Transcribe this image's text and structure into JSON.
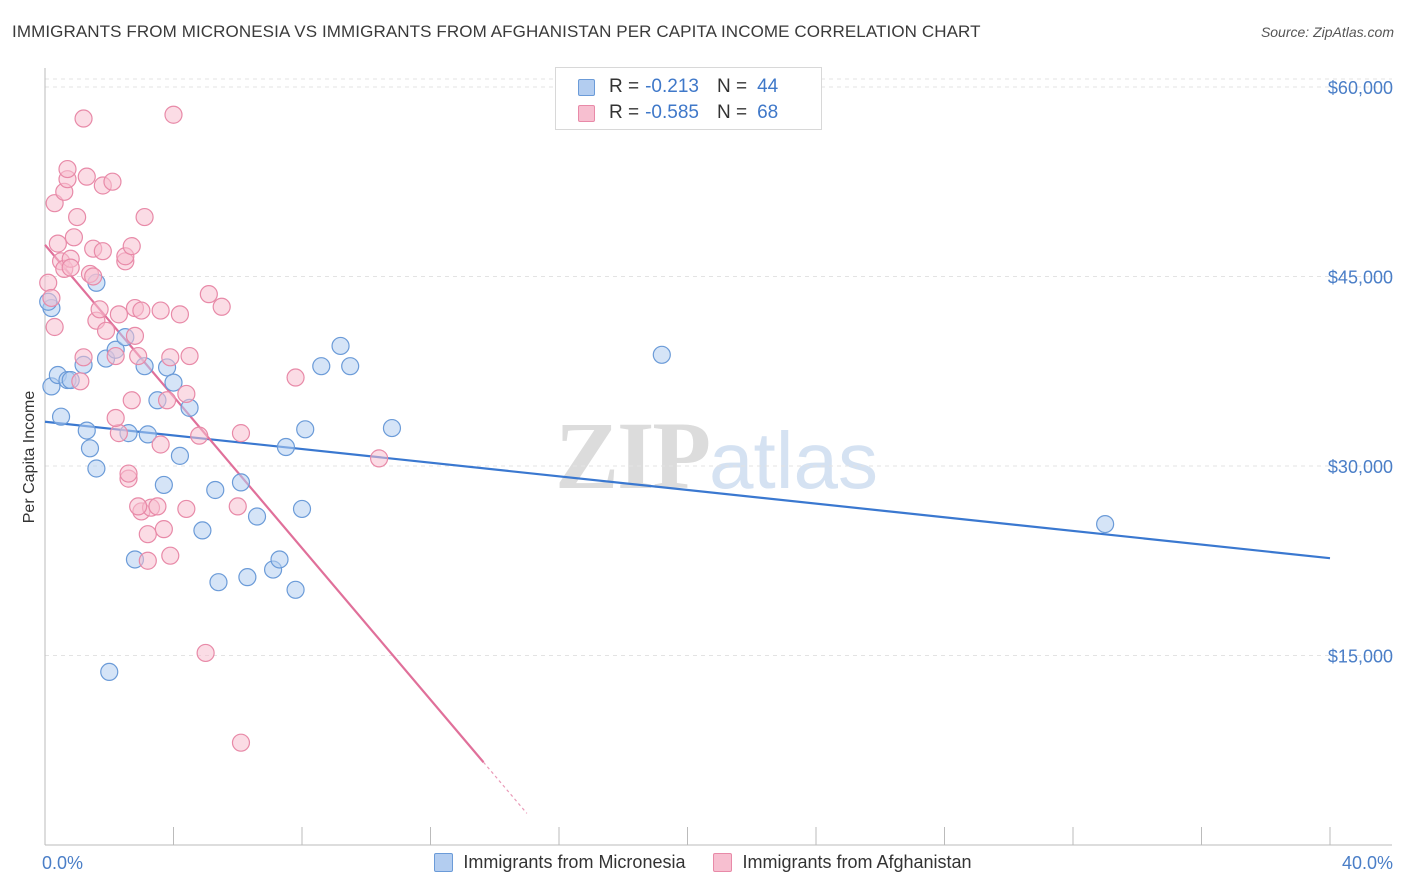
{
  "header": {
    "title": "IMMIGRANTS FROM MICRONESIA VS IMMIGRANTS FROM AFGHANISTAN PER CAPITA INCOME CORRELATION CHART",
    "source": "Source: ZipAtlas.com"
  },
  "watermark": {
    "zip": "ZIP",
    "atlas": "atlas"
  },
  "legend": {
    "micronesia": {
      "r_label": "R =",
      "r_value": "-0.213",
      "n_label": "N =",
      "n_value": "44"
    },
    "afghanistan": {
      "r_label": "R =",
      "r_value": "-0.585",
      "n_label": "N =",
      "n_value": "68"
    }
  },
  "colors": {
    "micronesia_fill": "#b3cdf0",
    "micronesia_stroke": "#6b9bd8",
    "micronesia_line": "#3a78d0",
    "afghanistan_fill": "#f7bfd0",
    "afghanistan_stroke": "#e88aa8",
    "afghanistan_line": "#e0709a"
  },
  "chart_data": {
    "type": "scatter",
    "title": "IMMIGRANTS FROM MICRONESIA VS IMMIGRANTS FROM AFGHANISTAN PER CAPITA INCOME CORRELATION CHART",
    "xlabel": "",
    "ylabel": "Per Capita Income",
    "xlim": [
      0,
      40
    ],
    "ylim": [
      0,
      61500
    ],
    "x_tick_labels": [
      "0.0%",
      "40.0%"
    ],
    "y_ticks": [
      15000,
      30000,
      45000,
      60000
    ],
    "y_tick_labels": [
      "$15,000",
      "$30,000",
      "$45,000",
      "$60,000"
    ],
    "legend_position": "bottom",
    "series": [
      {
        "name": "Immigrants from Micronesia",
        "points": [
          [
            0.2,
            42500
          ],
          [
            0.2,
            36300
          ],
          [
            0.4,
            37200
          ],
          [
            0.5,
            33900
          ],
          [
            0.7,
            36800
          ],
          [
            0.8,
            36800
          ],
          [
            1.2,
            38000
          ],
          [
            1.3,
            32800
          ],
          [
            1.4,
            31400
          ],
          [
            1.6,
            29800
          ],
          [
            1.6,
            44500
          ],
          [
            1.9,
            38500
          ],
          [
            2.2,
            39200
          ],
          [
            2.5,
            40200
          ],
          [
            2.6,
            32600
          ],
          [
            2.8,
            22600
          ],
          [
            3.1,
            37900
          ],
          [
            3.2,
            32500
          ],
          [
            3.5,
            35200
          ],
          [
            3.7,
            28500
          ],
          [
            3.8,
            37800
          ],
          [
            4.0,
            36600
          ],
          [
            4.2,
            30800
          ],
          [
            4.5,
            34600
          ],
          [
            4.9,
            24900
          ],
          [
            5.3,
            28100
          ],
          [
            5.4,
            20800
          ],
          [
            6.1,
            28700
          ],
          [
            6.3,
            21200
          ],
          [
            6.6,
            26000
          ],
          [
            7.1,
            21800
          ],
          [
            7.3,
            22600
          ],
          [
            7.5,
            31500
          ],
          [
            7.8,
            20200
          ],
          [
            8.0,
            26600
          ],
          [
            8.1,
            32900
          ],
          [
            8.6,
            37900
          ],
          [
            9.2,
            39500
          ],
          [
            9.5,
            37900
          ],
          [
            10.8,
            33000
          ],
          [
            19.2,
            38800
          ],
          [
            33.0,
            25400
          ],
          [
            2.0,
            13700
          ],
          [
            0.1,
            43000
          ]
        ]
      },
      {
        "name": "Immigrants from Afghanistan",
        "points": [
          [
            0.1,
            44500
          ],
          [
            0.2,
            43300
          ],
          [
            0.3,
            50800
          ],
          [
            0.3,
            41000
          ],
          [
            0.4,
            47600
          ],
          [
            0.5,
            46200
          ],
          [
            0.6,
            45600
          ],
          [
            0.6,
            51700
          ],
          [
            0.7,
            52700
          ],
          [
            0.7,
            53500
          ],
          [
            0.8,
            46400
          ],
          [
            0.9,
            48100
          ],
          [
            1.0,
            49700
          ],
          [
            1.1,
            36700
          ],
          [
            1.2,
            38600
          ],
          [
            1.2,
            57500
          ],
          [
            1.3,
            52900
          ],
          [
            1.4,
            45200
          ],
          [
            1.5,
            47200
          ],
          [
            1.5,
            45000
          ],
          [
            1.6,
            41500
          ],
          [
            1.7,
            42400
          ],
          [
            1.8,
            52200
          ],
          [
            1.8,
            47000
          ],
          [
            1.9,
            40700
          ],
          [
            2.1,
            52500
          ],
          [
            2.2,
            38700
          ],
          [
            2.3,
            32600
          ],
          [
            2.3,
            42000
          ],
          [
            2.5,
            46200
          ],
          [
            2.5,
            46600
          ],
          [
            2.6,
            29000
          ],
          [
            2.6,
            29400
          ],
          [
            2.7,
            47400
          ],
          [
            2.7,
            35200
          ],
          [
            2.8,
            42500
          ],
          [
            2.8,
            40300
          ],
          [
            2.9,
            38700
          ],
          [
            3.0,
            42300
          ],
          [
            3.0,
            26400
          ],
          [
            3.1,
            49700
          ],
          [
            3.2,
            24600
          ],
          [
            3.2,
            22500
          ],
          [
            3.3,
            26700
          ],
          [
            3.5,
            26800
          ],
          [
            3.6,
            42300
          ],
          [
            3.6,
            31700
          ],
          [
            3.7,
            25000
          ],
          [
            3.8,
            35200
          ],
          [
            3.9,
            38600
          ],
          [
            3.9,
            22900
          ],
          [
            4.0,
            57800
          ],
          [
            4.2,
            42000
          ],
          [
            4.4,
            26600
          ],
          [
            4.4,
            35700
          ],
          [
            4.5,
            38700
          ],
          [
            4.8,
            32400
          ],
          [
            5.0,
            15200
          ],
          [
            5.1,
            43600
          ],
          [
            5.5,
            42600
          ],
          [
            6.0,
            26800
          ],
          [
            6.1,
            32600
          ],
          [
            6.1,
            8100
          ],
          [
            7.8,
            37000
          ],
          [
            10.4,
            30600
          ],
          [
            2.9,
            26800
          ],
          [
            0.8,
            45700
          ],
          [
            2.2,
            33800
          ]
        ]
      }
    ],
    "trend_lines": [
      {
        "name": "Immigrants from Micronesia",
        "x": [
          0,
          40
        ],
        "y": [
          33500,
          22700
        ]
      },
      {
        "name": "Immigrants from Afghanistan",
        "x": [
          0,
          15
        ],
        "y": [
          47500,
          2500
        ]
      }
    ]
  }
}
